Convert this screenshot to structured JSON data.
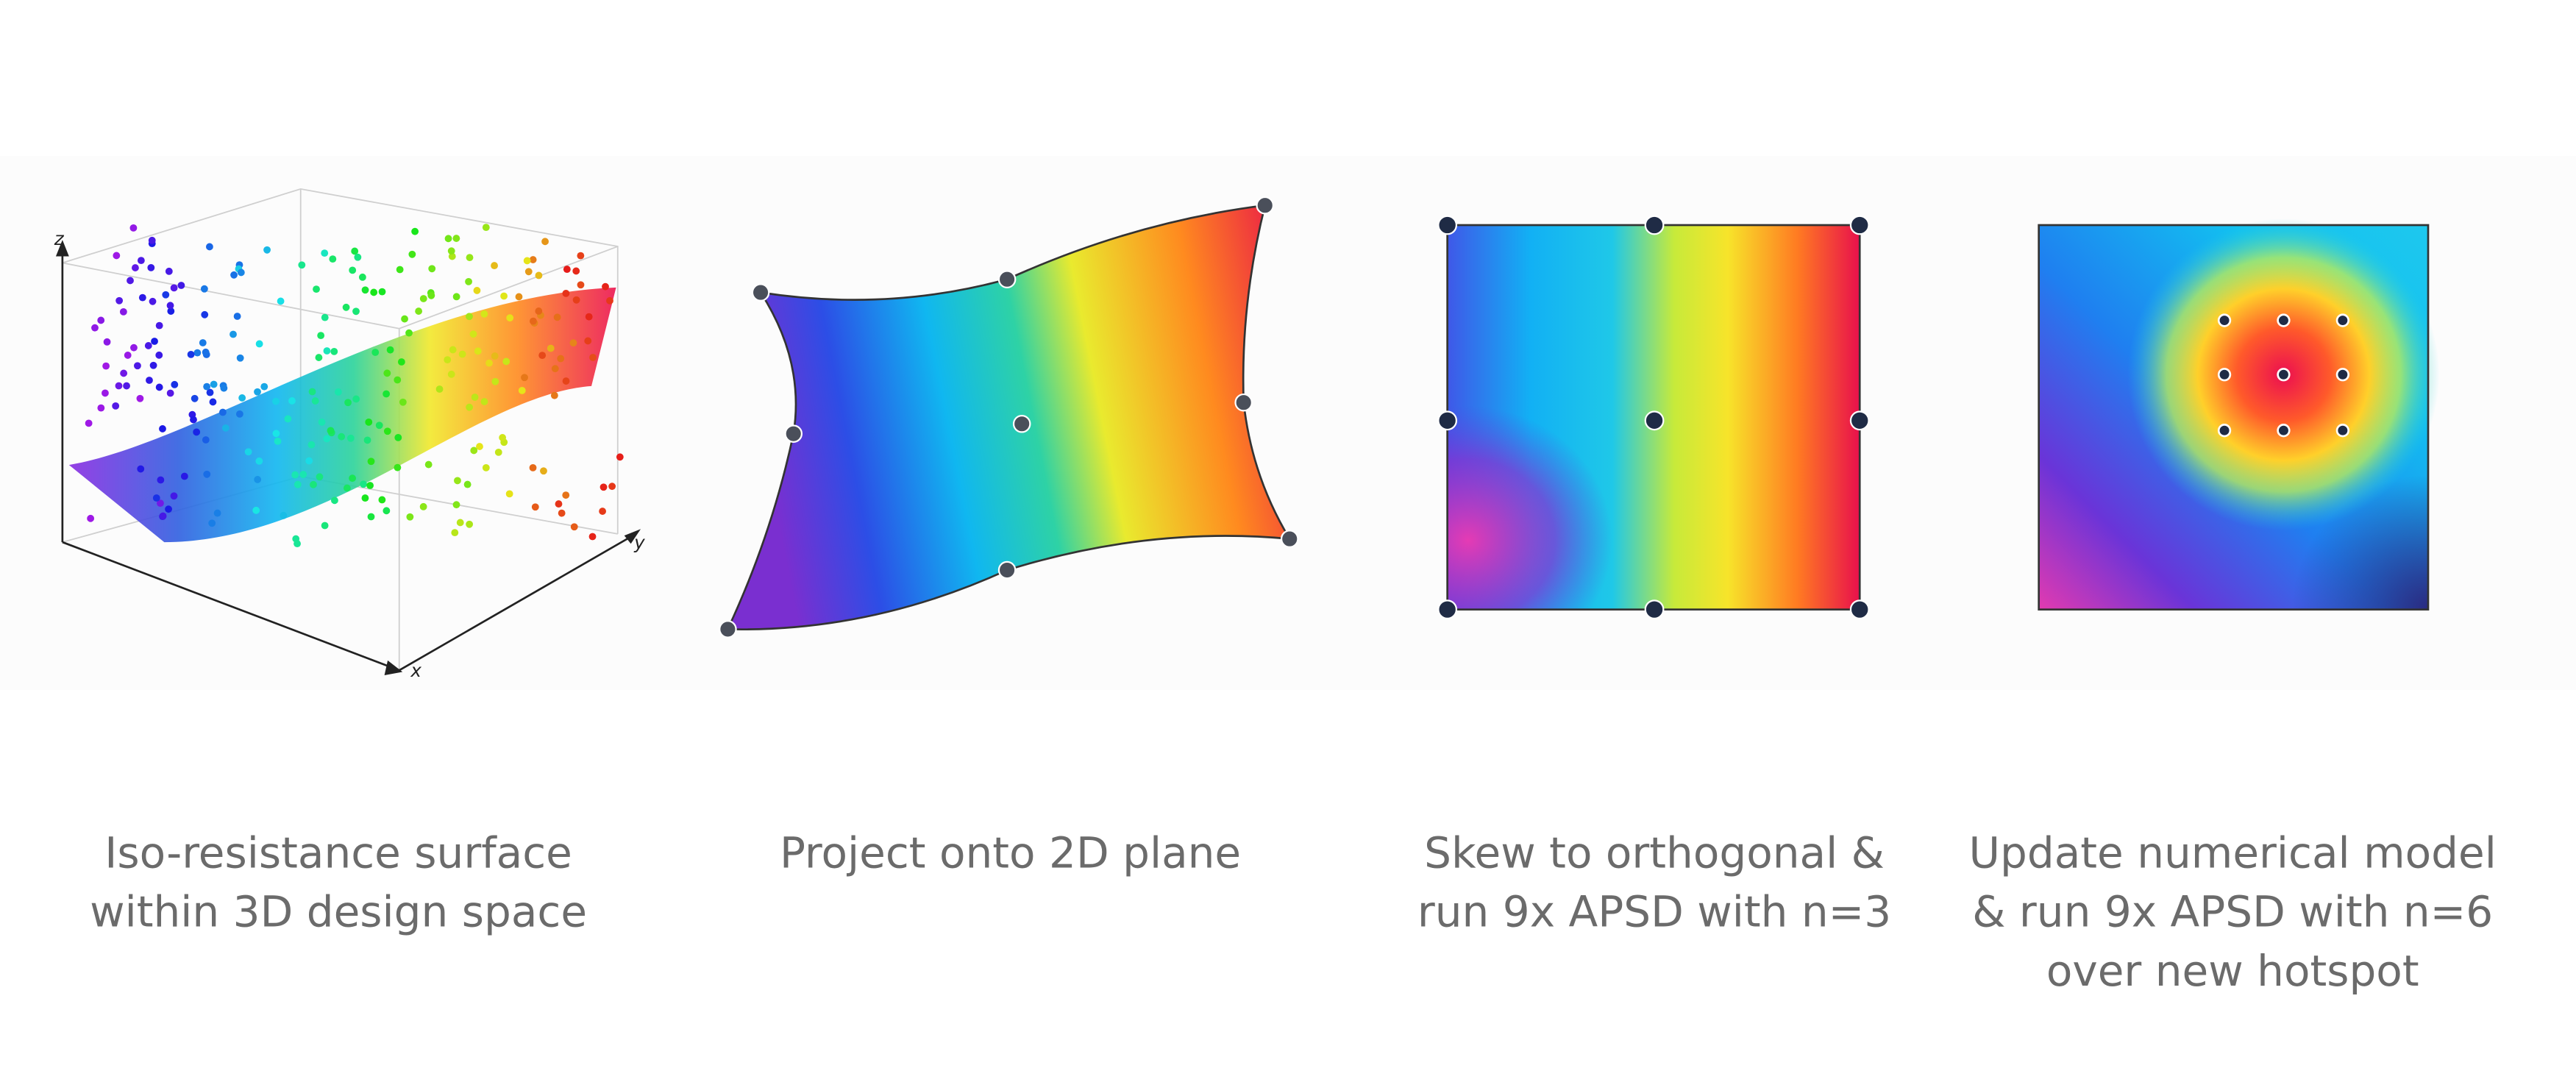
{
  "panels": [
    {
      "axes": {
        "z": "z",
        "y": "y",
        "x": "x"
      },
      "caption": [
        "Iso-resistance surface",
        "within 3D design space"
      ]
    },
    {
      "caption": [
        "Project onto 2D plane"
      ]
    },
    {
      "caption": [
        "Skew to orthogonal &",
        "run 9x APSD with n=3"
      ]
    },
    {
      "caption": [
        "Update numerical model",
        "& run 9x APSD with n=6",
        "over new hotspot"
      ]
    }
  ]
}
